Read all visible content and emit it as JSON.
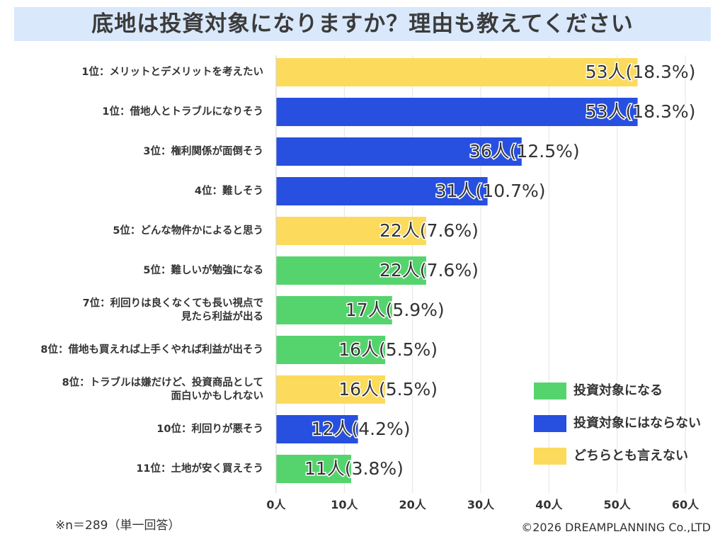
{
  "title": "底地は投資対象になりますか？理由も教えてください",
  "chart_data": {
    "type": "bar",
    "orientation": "horizontal",
    "title": "底地は投資対象になりますか？理由も教えてください",
    "xlim": [
      0,
      60
    ],
    "x_ticks": [
      "0人",
      "10人",
      "20人",
      "30人",
      "40人",
      "50人",
      "60人"
    ],
    "grid": true,
    "categories": [
      "1位：メリットとデメリットを考えたい",
      "1位：借地人とトラブルになりそう",
      "3位：権利関係が面倒そう",
      "4位：難しそう",
      "5位：どんな物件かによると思う",
      "5位：難しいが勉強になる",
      "7位：利回りは良くなくても長い視点で見たら利益が出る",
      "8位：借地も買えれば上手くやれば利益が出そう",
      "8位：トラブルは嫌だけど、投資商品として面白いかもしれない",
      "10位：利回りが悪そう",
      "11位：土地が安く買えそう"
    ],
    "category_lines": [
      [
        "1位：メリットとデメリットを考えたい"
      ],
      [
        "1位：借地人とトラブルになりそう"
      ],
      [
        "3位：権利関係が面倒そう"
      ],
      [
        "4位：難しそう"
      ],
      [
        "5位：どんな物件かによると思う"
      ],
      [
        "5位：難しいが勉強になる"
      ],
      [
        "7位：利回りは良くなくても長い視点で",
        "見たら利益が出る"
      ],
      [
        "8位：借地も買えれば上手くやれば利益が出そう"
      ],
      [
        "8位：トラブルは嫌だけど、投資商品として",
        "面白いかもしれない"
      ],
      [
        "10位：利回りが悪そう"
      ],
      [
        "11位：土地が安く買えそう"
      ]
    ],
    "values": [
      53,
      53,
      36,
      31,
      22,
      22,
      17,
      16,
      16,
      12,
      11
    ],
    "value_labels": [
      "53人(18.3%)",
      "53人(18.3%)",
      "36人(12.5%)",
      "31人(10.7%)",
      "22人(7.6%)",
      "22人(7.6%)",
      "17人(5.9%)",
      "16人(5.5%)",
      "16人(5.5%)",
      "12人(4.2%)",
      "11人(3.8%)"
    ],
    "groups": [
      "neutral",
      "no",
      "no",
      "no",
      "neutral",
      "yes",
      "yes",
      "yes",
      "neutral",
      "no",
      "yes"
    ],
    "legend": [
      {
        "key": "yes",
        "label": "投資対象になる",
        "color": "#55d46e"
      },
      {
        "key": "no",
        "label": "投資対象にはならない",
        "color": "#2750e0"
      },
      {
        "key": "neutral",
        "label": "どちらとも言えない",
        "color": "#fcdb5c"
      }
    ],
    "legend_position": "bottom-right"
  },
  "footnote": "※n＝289（単一回答）",
  "copyright": "©2026 DREAMPLANNING Co.,LTD"
}
